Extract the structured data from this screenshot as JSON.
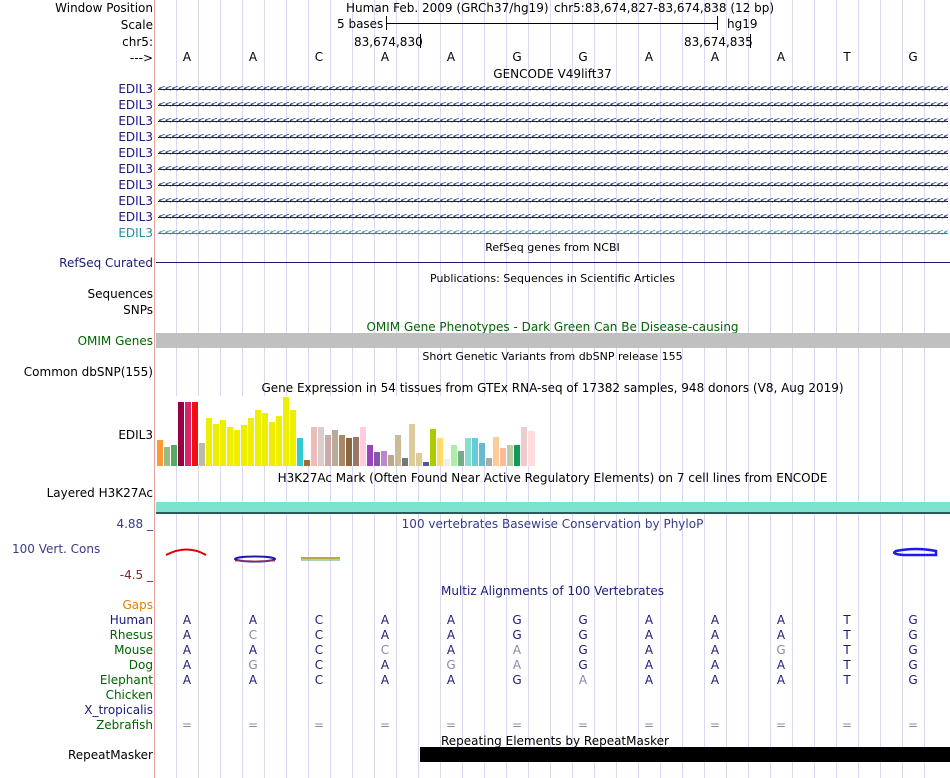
{
  "header": {
    "window_position_label": "Window Position",
    "assembly_text": "Human Feb. 2009 (GRCh37/hg19)",
    "position_text": "chr5:83,674,827-83,674,838 (12 bp)",
    "scale_label": "Scale",
    "scale_text": "5 bases",
    "db_text": "hg19",
    "chrom_label": "chr5:",
    "coord_1": "83,674,830",
    "coord_2": "83,674,835",
    "strand_label": "--->"
  },
  "sequence": [
    "A",
    "A",
    "C",
    "A",
    "A",
    "G",
    "G",
    "A",
    "A",
    "A",
    "T",
    "G"
  ],
  "gencode": {
    "title": "GENCODE V49lift37",
    "transcripts": [
      "EDIL3",
      "EDIL3",
      "EDIL3",
      "EDIL3",
      "EDIL3",
      "EDIL3",
      "EDIL3",
      "EDIL3",
      "EDIL3",
      "EDIL3"
    ]
  },
  "refseq": {
    "title": "RefSeq genes from NCBI",
    "label": "RefSeq Curated"
  },
  "publications": {
    "title": "Publications: Sequences in Scientific Articles",
    "label": "Sequences"
  },
  "snps_label": "SNPs",
  "omim": {
    "title": "OMIM Gene Phenotypes - Dark Green Can Be Disease-causing",
    "label": "OMIM Genes"
  },
  "dbsnp": {
    "title": "Short Genetic Variants from dbSNP release 155",
    "label": "Common dbSNP(155)"
  },
  "gtex": {
    "title": "Gene Expression in 54 tissues from GTEx RNA-seq of 17382 samples, 948 donors (V8, Aug 2019)",
    "label": "EDIL3",
    "bars": [
      {
        "v": 0.37,
        "c": "#ff9933"
      },
      {
        "v": 0.27,
        "c": "#99bb88"
      },
      {
        "v": 0.3,
        "c": "#55aa66"
      },
      {
        "v": 0.92,
        "c": "#990044"
      },
      {
        "v": 0.92,
        "c": "#dd2266"
      },
      {
        "v": 0.92,
        "c": "#ee1111"
      },
      {
        "v": 0.33,
        "c": "#bbbbaa"
      },
      {
        "v": 0.68,
        "c": "#eeee00"
      },
      {
        "v": 0.6,
        "c": "#eeee00"
      },
      {
        "v": 0.65,
        "c": "#eeee00"
      },
      {
        "v": 0.55,
        "c": "#eeee00"
      },
      {
        "v": 0.51,
        "c": "#eeee00"
      },
      {
        "v": 0.58,
        "c": "#eeee00"
      },
      {
        "v": 0.68,
        "c": "#eeee00"
      },
      {
        "v": 0.8,
        "c": "#eeee00"
      },
      {
        "v": 0.76,
        "c": "#eeee00"
      },
      {
        "v": 0.63,
        "c": "#eeee00"
      },
      {
        "v": 0.72,
        "c": "#eeee00"
      },
      {
        "v": 0.98,
        "c": "#eeee00"
      },
      {
        "v": 0.8,
        "c": "#eeee00"
      },
      {
        "v": 0.4,
        "c": "#33cccc"
      },
      {
        "v": 0.08,
        "c": "#aa6633"
      },
      {
        "v": 0.55,
        "c": "#eebbbb"
      },
      {
        "v": 0.55,
        "c": "#ddcccc"
      },
      {
        "v": 0.44,
        "c": "#ccaaaa"
      },
      {
        "v": 0.51,
        "c": "#bbaa99"
      },
      {
        "v": 0.44,
        "c": "#aa8866"
      },
      {
        "v": 0.4,
        "c": "#886644"
      },
      {
        "v": 0.42,
        "c": "#997766"
      },
      {
        "v": 0.55,
        "c": "#ffccdd"
      },
      {
        "v": 0.3,
        "c": "#9944bb"
      },
      {
        "v": 0.2,
        "c": "#8855aa"
      },
      {
        "v": 0.22,
        "c": "#bb88cc"
      },
      {
        "v": 0.16,
        "c": "#bbaa88"
      },
      {
        "v": 0.44,
        "c": "#ccbb99"
      },
      {
        "v": 0.12,
        "c": "#777777"
      },
      {
        "v": 0.6,
        "c": "#ddcc99"
      },
      {
        "v": 0.18,
        "c": "#ddcc99"
      },
      {
        "v": 0.05,
        "c": "#5555aa"
      },
      {
        "v": 0.53,
        "c": "#aacc00"
      },
      {
        "v": 0.4,
        "c": "#ffdd66"
      },
      {
        "v": 0.1,
        "c": "#eeeeee"
      },
      {
        "v": 0.3,
        "c": "#aaeeaa"
      },
      {
        "v": 0.22,
        "c": "#77aa88"
      },
      {
        "v": 0.4,
        "c": "#88ddcc"
      },
      {
        "v": 0.4,
        "c": "#66ccdd"
      },
      {
        "v": 0.33,
        "c": "#66bbcc"
      },
      {
        "v": 0.12,
        "c": "#aaaaaa"
      },
      {
        "v": 0.42,
        "c": "#ffcc99"
      },
      {
        "v": 0.25,
        "c": "#ffbb99"
      },
      {
        "v": 0.3,
        "c": "#bbccaa"
      },
      {
        "v": 0.3,
        "c": "#119955"
      },
      {
        "v": 0.56,
        "c": "#eecccc"
      },
      {
        "v": 0.5,
        "c": "#ffdddd"
      }
    ]
  },
  "h3k27ac": {
    "title": "H3K27Ac Mark (Often Found Near Active Regulatory Elements) on 7 cell lines from ENCODE",
    "label": "Layered H3K27Ac"
  },
  "conservation": {
    "title": "100 vertebrates Basewise Conservation by PhyloP",
    "label": "100 Vert. Cons",
    "max_label": "4.88 _",
    "min_label": "-4.5 _"
  },
  "multiz": {
    "title": "Multiz Alignments of 100 Vertebrates",
    "gaps_label": "Gaps",
    "species": [
      {
        "name": "Human",
        "bases": [
          "A",
          "A",
          "C",
          "A",
          "A",
          "G",
          "G",
          "A",
          "A",
          "A",
          "T",
          "G"
        ],
        "dim": []
      },
      {
        "name": "Rhesus",
        "bases": [
          "A",
          "C",
          "C",
          "A",
          "A",
          "G",
          "G",
          "A",
          "A",
          "A",
          "T",
          "G"
        ],
        "dim": [
          1
        ]
      },
      {
        "name": "Mouse",
        "bases": [
          "A",
          "A",
          "C",
          "C",
          "A",
          "A",
          "G",
          "A",
          "A",
          "G",
          "T",
          "G"
        ],
        "dim": [
          3,
          5,
          9
        ]
      },
      {
        "name": "Dog",
        "bases": [
          "A",
          "G",
          "C",
          "A",
          "G",
          "A",
          "G",
          "A",
          "A",
          "A",
          "T",
          "G"
        ],
        "dim": [
          1,
          4,
          5
        ]
      },
      {
        "name": "Elephant",
        "bases": [
          "A",
          "A",
          "C",
          "A",
          "A",
          "G",
          "A",
          "A",
          "A",
          "A",
          "T",
          "G"
        ],
        "dim": [
          6
        ]
      },
      {
        "name": "Chicken",
        "bases": [],
        "dim": []
      },
      {
        "name": "X_tropicalis",
        "bases": [],
        "dim": []
      },
      {
        "name": "Zebrafish",
        "bases": [
          "=",
          "=",
          "=",
          "=",
          "=",
          "=",
          "=",
          "=",
          "=",
          "=",
          "=",
          "="
        ],
        "dim": [
          0,
          1,
          2,
          3,
          4,
          5,
          6,
          7,
          8,
          9,
          10,
          11
        ]
      }
    ]
  },
  "repeatmasker": {
    "title": "Repeating Elements by RepeatMasker",
    "label": "RepeatMasker"
  },
  "colors": {
    "navy": "#1a1a7a",
    "green_label": "#006400",
    "orange_label": "#e08000",
    "cons_blue": "#3a3a8a",
    "omim_gray": "#c0c0c0",
    "h3k27ac": "#7de3cf"
  }
}
